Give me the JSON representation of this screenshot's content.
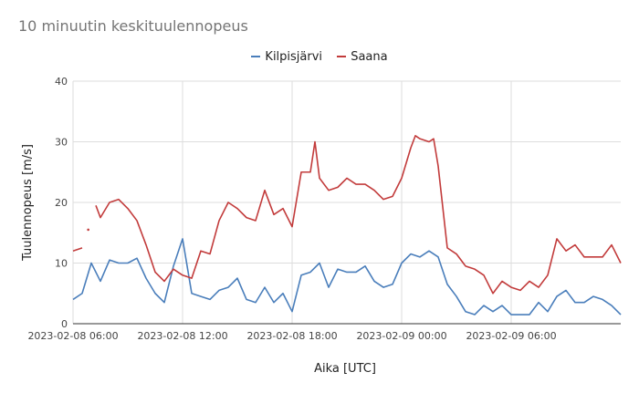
{
  "chart_data": {
    "type": "line",
    "title": "10 minuutin keskituulennopeus",
    "xlabel": "Aika [UTC]",
    "ylabel": "Tuulennopeus [m/s]",
    "ylim": [
      0,
      40
    ],
    "yticks": [
      "0",
      "10",
      "20",
      "30",
      "40"
    ],
    "xlim": [
      "2023-02-08 06:00",
      "2023-02-09 12:00"
    ],
    "xticks": [
      "2023-02-08 06:00",
      "2023-02-08 12:00",
      "2023-02-08 18:00",
      "2023-02-09 00:00",
      "2023-02-09 06:00"
    ],
    "grid": true,
    "legend": "top",
    "series": [
      {
        "name": "Kilpisjärvi",
        "color": "#4a7ebb",
        "points": [
          [
            "2023-02-08 06:00",
            4
          ],
          [
            "2023-02-08 06:30",
            5
          ],
          [
            "2023-02-08 07:00",
            10
          ],
          [
            "2023-02-08 07:30",
            7
          ],
          [
            "2023-02-08 08:00",
            10.5
          ],
          [
            "2023-02-08 08:30",
            10
          ],
          [
            "2023-02-08 09:00",
            10
          ],
          [
            "2023-02-08 09:30",
            10.8
          ],
          [
            "2023-02-08 10:00",
            7.5
          ],
          [
            "2023-02-08 10:30",
            5
          ],
          [
            "2023-02-08 11:00",
            3.5
          ],
          [
            "2023-02-08 11:30",
            9.5
          ],
          [
            "2023-02-08 12:00",
            14
          ],
          [
            "2023-02-08 12:30",
            5
          ],
          [
            "2023-02-08 13:00",
            4.5
          ],
          [
            "2023-02-08 13:30",
            4
          ],
          [
            "2023-02-08 14:00",
            5.5
          ],
          [
            "2023-02-08 14:30",
            6
          ],
          [
            "2023-02-08 15:00",
            7.5
          ],
          [
            "2023-02-08 15:30",
            4
          ],
          [
            "2023-02-08 16:00",
            3.5
          ],
          [
            "2023-02-08 16:30",
            6
          ],
          [
            "2023-02-08 17:00",
            3.5
          ],
          [
            "2023-02-08 17:30",
            5
          ],
          [
            "2023-02-08 18:00",
            2
          ],
          [
            "2023-02-08 18:30",
            8
          ],
          [
            "2023-02-08 19:00",
            8.5
          ],
          [
            "2023-02-08 19:30",
            10
          ],
          [
            "2023-02-08 20:00",
            6
          ],
          [
            "2023-02-08 20:30",
            9
          ],
          [
            "2023-02-08 21:00",
            8.5
          ],
          [
            "2023-02-08 21:30",
            8.5
          ],
          [
            "2023-02-08 22:00",
            9.5
          ],
          [
            "2023-02-08 22:30",
            7
          ],
          [
            "2023-02-08 23:00",
            6
          ],
          [
            "2023-02-08 23:30",
            6.5
          ],
          [
            "2023-02-09 00:00",
            10
          ],
          [
            "2023-02-09 00:30",
            11.5
          ],
          [
            "2023-02-09 01:00",
            11
          ],
          [
            "2023-02-09 01:30",
            12
          ],
          [
            "2023-02-09 02:00",
            11
          ],
          [
            "2023-02-09 02:30",
            6.5
          ],
          [
            "2023-02-09 03:00",
            4.5
          ],
          [
            "2023-02-09 03:30",
            2
          ],
          [
            "2023-02-09 04:00",
            1.5
          ],
          [
            "2023-02-09 04:30",
            3
          ],
          [
            "2023-02-09 05:00",
            2
          ],
          [
            "2023-02-09 05:30",
            3
          ],
          [
            "2023-02-09 06:00",
            1.5
          ],
          [
            "2023-02-09 06:30",
            1.5
          ],
          [
            "2023-02-09 07:00",
            1.5
          ],
          [
            "2023-02-09 07:30",
            3.5
          ],
          [
            "2023-02-09 08:00",
            2
          ],
          [
            "2023-02-09 08:30",
            4.5
          ],
          [
            "2023-02-09 09:00",
            5.5
          ],
          [
            "2023-02-09 09:30",
            3.5
          ],
          [
            "2023-02-09 10:00",
            3.5
          ],
          [
            "2023-02-09 10:30",
            4.5
          ],
          [
            "2023-02-09 11:00",
            4
          ],
          [
            "2023-02-09 11:30",
            3
          ],
          [
            "2023-02-09 12:00",
            1.5
          ]
        ]
      },
      {
        "name": "Saana",
        "color": "#c23b3b",
        "points": [
          [
            "2023-02-08 06:00",
            12
          ],
          [
            "2023-02-08 06:30",
            12.5
          ],
          [
            "2023-02-08 06:40",
            null
          ],
          [
            "2023-02-08 06:50",
            15.5
          ],
          [
            "2023-02-08 07:00",
            null
          ],
          [
            "2023-02-08 07:15",
            19.5
          ],
          [
            "2023-02-08 07:30",
            17.5
          ],
          [
            "2023-02-08 08:00",
            20
          ],
          [
            "2023-02-08 08:30",
            20.5
          ],
          [
            "2023-02-08 09:00",
            19
          ],
          [
            "2023-02-08 09:30",
            17
          ],
          [
            "2023-02-08 10:00",
            13
          ],
          [
            "2023-02-08 10:30",
            8.5
          ],
          [
            "2023-02-08 11:00",
            7
          ],
          [
            "2023-02-08 11:30",
            9
          ],
          [
            "2023-02-08 12:00",
            8
          ],
          [
            "2023-02-08 12:30",
            7.5
          ],
          [
            "2023-02-08 13:00",
            12
          ],
          [
            "2023-02-08 13:30",
            11.5
          ],
          [
            "2023-02-08 14:00",
            17
          ],
          [
            "2023-02-08 14:30",
            20
          ],
          [
            "2023-02-08 15:00",
            19
          ],
          [
            "2023-02-08 15:30",
            17.5
          ],
          [
            "2023-02-08 16:00",
            17
          ],
          [
            "2023-02-08 16:30",
            22
          ],
          [
            "2023-02-08 17:00",
            18
          ],
          [
            "2023-02-08 17:30",
            19
          ],
          [
            "2023-02-08 18:00",
            16
          ],
          [
            "2023-02-08 18:30",
            25
          ],
          [
            "2023-02-08 19:00",
            25
          ],
          [
            "2023-02-08 19:15",
            30
          ],
          [
            "2023-02-08 19:30",
            24
          ],
          [
            "2023-02-08 20:00",
            22
          ],
          [
            "2023-02-08 20:30",
            22.5
          ],
          [
            "2023-02-08 21:00",
            24
          ],
          [
            "2023-02-08 21:30",
            23
          ],
          [
            "2023-02-08 22:00",
            23
          ],
          [
            "2023-02-08 22:30",
            22
          ],
          [
            "2023-02-08 23:00",
            20.5
          ],
          [
            "2023-02-08 23:30",
            21
          ],
          [
            "2023-02-09 00:00",
            24
          ],
          [
            "2023-02-09 00:30",
            29
          ],
          [
            "2023-02-09 00:45",
            31
          ],
          [
            "2023-02-09 01:00",
            30.5
          ],
          [
            "2023-02-09 01:30",
            30
          ],
          [
            "2023-02-09 01:45",
            30.5
          ],
          [
            "2023-02-09 02:00",
            26
          ],
          [
            "2023-02-09 02:30",
            12.5
          ],
          [
            "2023-02-09 03:00",
            11.5
          ],
          [
            "2023-02-09 03:30",
            9.5
          ],
          [
            "2023-02-09 04:00",
            9
          ],
          [
            "2023-02-09 04:30",
            8
          ],
          [
            "2023-02-09 05:00",
            5
          ],
          [
            "2023-02-09 05:30",
            7
          ],
          [
            "2023-02-09 06:00",
            6
          ],
          [
            "2023-02-09 06:30",
            5.5
          ],
          [
            "2023-02-09 07:00",
            7
          ],
          [
            "2023-02-09 07:30",
            6
          ],
          [
            "2023-02-09 08:00",
            8
          ],
          [
            "2023-02-09 08:30",
            14
          ],
          [
            "2023-02-09 09:00",
            12
          ],
          [
            "2023-02-09 09:30",
            13
          ],
          [
            "2023-02-09 10:00",
            11
          ],
          [
            "2023-02-09 10:30",
            11
          ],
          [
            "2023-02-09 11:00",
            11
          ],
          [
            "2023-02-09 11:30",
            13
          ],
          [
            "2023-02-09 12:00",
            10
          ]
        ]
      }
    ]
  }
}
